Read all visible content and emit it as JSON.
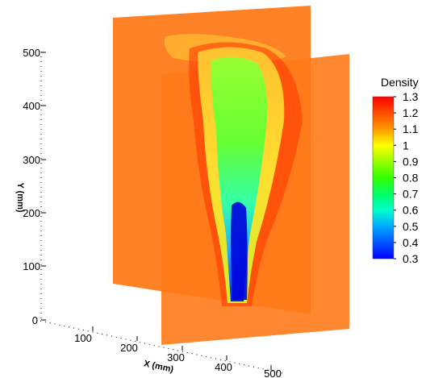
{
  "chart_data": {
    "type": "heatmap",
    "variable": "Density",
    "x_axis": {
      "label": "X (mm)",
      "ticks": [
        "0",
        "100",
        "200",
        "300",
        "400",
        "500"
      ]
    },
    "y_axis": {
      "label": "Y (mm)",
      "ticks": [
        "0",
        "100",
        "200",
        "300",
        "400",
        "500"
      ]
    },
    "colorbar": {
      "title": "Density",
      "levels": [
        1.3,
        1.2,
        1.1,
        1,
        0.9,
        0.8,
        0.7,
        0.6,
        0.5,
        0.4,
        0.3
      ],
      "labels": [
        "1.3",
        "1.2",
        "1.1",
        "1",
        "0.9",
        "0.8",
        "0.7",
        "0.6",
        "0.5",
        "0.4",
        "0.3"
      ],
      "colors": [
        "#ff0000",
        "#ff4d00",
        "#ff9900",
        "#ffff00",
        "#99ff00",
        "#33ff00",
        "#00ff66",
        "#00ffcc",
        "#00aaff",
        "#0055ff",
        "#0000ff"
      ],
      "range": [
        0.3,
        1.3
      ],
      "placement": "right"
    },
    "background_value_color": "#ff7a1a",
    "description_values": {
      "ambient_density": 1.2,
      "core_min_density": 0.3
    }
  }
}
